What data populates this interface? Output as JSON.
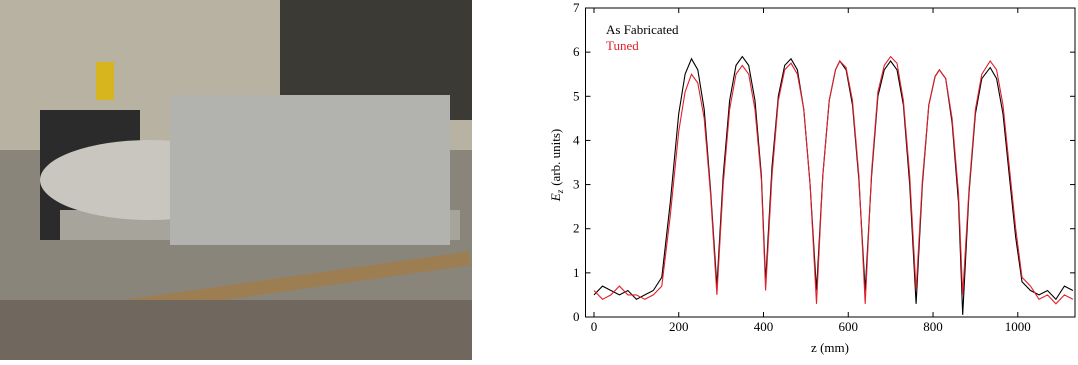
{
  "chart_data": {
    "type": "line",
    "xlabel": "z (mm)",
    "ylabel": {
      "symbol": "E",
      "subscript": "z",
      "unit": "(arb. units)"
    },
    "xlim": [
      -20,
      1135
    ],
    "ylim": [
      0,
      7
    ],
    "xticks": [
      0,
      200,
      400,
      600,
      800,
      1000
    ],
    "yticks": [
      0,
      1,
      2,
      3,
      4,
      5,
      6,
      7
    ],
    "x": [
      0,
      20,
      40,
      60,
      80,
      100,
      120,
      140,
      160,
      180,
      200,
      215,
      230,
      245,
      260,
      275,
      290,
      305,
      320,
      335,
      350,
      365,
      380,
      395,
      405,
      420,
      435,
      450,
      465,
      480,
      495,
      510,
      525,
      540,
      555,
      570,
      580,
      595,
      610,
      625,
      640,
      655,
      670,
      685,
      700,
      715,
      730,
      745,
      760,
      775,
      790,
      805,
      815,
      830,
      845,
      860,
      870,
      885,
      900,
      915,
      935,
      950,
      965,
      980,
      995,
      1010,
      1030,
      1050,
      1070,
      1090,
      1110,
      1130
    ],
    "series": [
      {
        "name": "As Fabricated",
        "color": "#000000",
        "values": [
          0.5,
          0.7,
          0.6,
          0.5,
          0.6,
          0.4,
          0.5,
          0.6,
          0.9,
          2.6,
          4.6,
          5.5,
          5.85,
          5.6,
          4.7,
          2.9,
          0.7,
          3.2,
          4.9,
          5.7,
          5.9,
          5.7,
          4.9,
          3.2,
          0.8,
          3.4,
          5.0,
          5.7,
          5.85,
          5.6,
          4.7,
          3.0,
          0.6,
          3.2,
          4.9,
          5.6,
          5.8,
          5.6,
          4.8,
          3.1,
          0.6,
          3.2,
          5.0,
          5.6,
          5.8,
          5.6,
          4.8,
          3.0,
          0.3,
          3.0,
          4.8,
          5.45,
          5.6,
          5.4,
          4.4,
          2.6,
          0.05,
          2.8,
          4.6,
          5.4,
          5.65,
          5.4,
          4.6,
          3.2,
          1.8,
          0.8,
          0.6,
          0.5,
          0.6,
          0.4,
          0.7,
          0.6
        ]
      },
      {
        "name": "Tuned",
        "color": "#e0202a",
        "values": [
          0.6,
          0.4,
          0.5,
          0.7,
          0.5,
          0.5,
          0.4,
          0.5,
          0.7,
          2.3,
          4.2,
          5.1,
          5.5,
          5.3,
          4.5,
          2.8,
          0.5,
          3.0,
          4.7,
          5.5,
          5.7,
          5.5,
          4.7,
          3.1,
          0.6,
          3.2,
          4.9,
          5.6,
          5.75,
          5.5,
          4.7,
          3.0,
          0.3,
          3.2,
          4.9,
          5.6,
          5.8,
          5.65,
          4.9,
          3.2,
          0.3,
          3.3,
          5.1,
          5.7,
          5.9,
          5.75,
          4.9,
          3.2,
          0.6,
          3.1,
          4.8,
          5.45,
          5.6,
          5.4,
          4.5,
          2.8,
          0.5,
          2.9,
          4.7,
          5.5,
          5.8,
          5.6,
          4.8,
          3.4,
          2.0,
          0.9,
          0.7,
          0.4,
          0.5,
          0.3,
          0.5,
          0.4
        ]
      }
    ]
  }
}
